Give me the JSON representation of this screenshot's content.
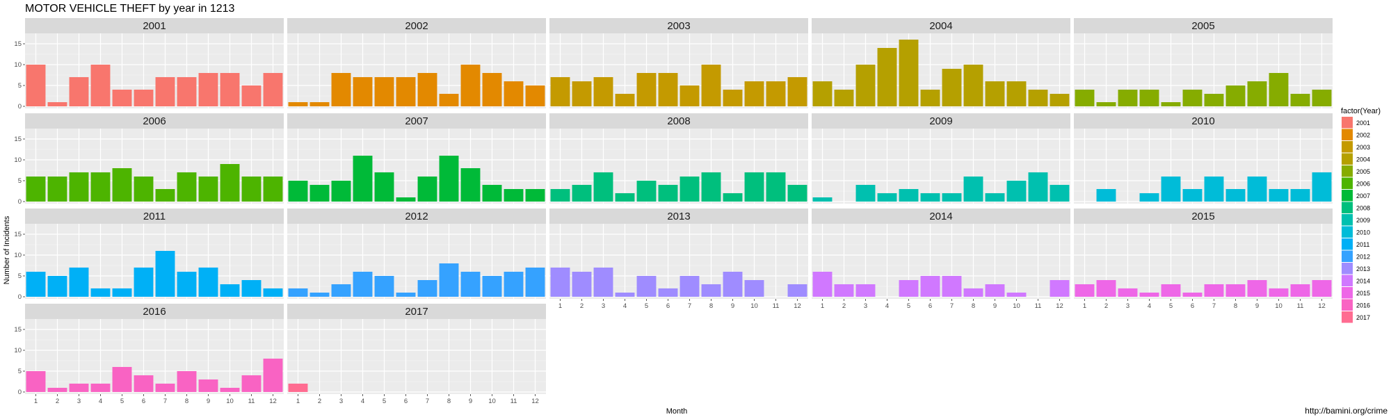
{
  "chart_data": {
    "type": "bar",
    "title": "MOTOR VEHICLE THEFT by year in 1213",
    "xlabel": "Month",
    "ylabel": "Number of Incidents",
    "legend_title": "factor(Year)",
    "legend_position": "right",
    "source": "http://bamini.org/crime",
    "ylim": [
      0,
      17
    ],
    "yticks": [
      0,
      5,
      10,
      15
    ],
    "categories": [
      "1",
      "2",
      "3",
      "4",
      "5",
      "6",
      "7",
      "8",
      "9",
      "10",
      "11",
      "12"
    ],
    "grid": true,
    "series": [
      {
        "name": "2001",
        "color": "#F8766D",
        "values": [
          10,
          1,
          7,
          10,
          4,
          4,
          7,
          7,
          8,
          8,
          5,
          8
        ]
      },
      {
        "name": "2002",
        "color": "#E38900",
        "values": [
          1,
          1,
          8,
          7,
          7,
          7,
          8,
          3,
          10,
          8,
          6,
          5
        ]
      },
      {
        "name": "2003",
        "color": "#C49A00",
        "values": [
          7,
          6,
          7,
          3,
          8,
          8,
          5,
          10,
          4,
          6,
          6,
          7
        ]
      },
      {
        "name": "2004",
        "color": "#B5A000",
        "values": [
          6,
          4,
          10,
          14,
          16,
          4,
          9,
          10,
          6,
          6,
          4,
          3
        ]
      },
      {
        "name": "2005",
        "color": "#86AC00",
        "values": [
          4,
          1,
          4,
          4,
          1,
          4,
          3,
          5,
          6,
          8,
          3,
          4
        ]
      },
      {
        "name": "2006",
        "color": "#4DB400",
        "values": [
          6,
          6,
          7,
          7,
          8,
          6,
          3,
          7,
          6,
          9,
          6,
          6
        ]
      },
      {
        "name": "2007",
        "color": "#00BA38",
        "values": [
          5,
          4,
          5,
          11,
          7,
          1,
          6,
          11,
          8,
          4,
          3,
          3
        ]
      },
      {
        "name": "2008",
        "color": "#00BF7D",
        "values": [
          3,
          4,
          7,
          2,
          5,
          4,
          6,
          7,
          2,
          7,
          7,
          4
        ]
      },
      {
        "name": "2009",
        "color": "#00C0AF",
        "values": [
          1,
          0,
          4,
          2,
          3,
          2,
          2,
          6,
          2,
          5,
          7,
          4
        ]
      },
      {
        "name": "2010",
        "color": "#00BCD8",
        "values": [
          0,
          3,
          0,
          2,
          6,
          3,
          6,
          3,
          6,
          3,
          3,
          7
        ]
      },
      {
        "name": "2011",
        "color": "#00B0F6",
        "values": [
          6,
          5,
          7,
          2,
          2,
          7,
          11,
          6,
          7,
          3,
          4,
          2
        ]
      },
      {
        "name": "2012",
        "color": "#35A2FF",
        "values": [
          2,
          1,
          3,
          6,
          5,
          1,
          4,
          8,
          6,
          5,
          6,
          7
        ]
      },
      {
        "name": "2013",
        "color": "#9F8CFF",
        "values": [
          7,
          6,
          7,
          1,
          5,
          2,
          5,
          3,
          6,
          4,
          0,
          3
        ]
      },
      {
        "name": "2014",
        "color": "#D078FF",
        "values": [
          6,
          3,
          3,
          0,
          4,
          5,
          5,
          2,
          3,
          1,
          0,
          4
        ]
      },
      {
        "name": "2015",
        "color": "#EE67E7",
        "values": [
          3,
          4,
          2,
          1,
          3,
          1,
          3,
          3,
          4,
          2,
          3,
          4
        ]
      },
      {
        "name": "2016",
        "color": "#F963C3",
        "values": [
          5,
          1,
          2,
          2,
          6,
          4,
          2,
          5,
          3,
          1,
          4,
          8
        ]
      },
      {
        "name": "2017",
        "color": "#FF6C91",
        "values": [
          2,
          0,
          0,
          0,
          0,
          0,
          0,
          0,
          0,
          0,
          0,
          0
        ]
      }
    ]
  }
}
